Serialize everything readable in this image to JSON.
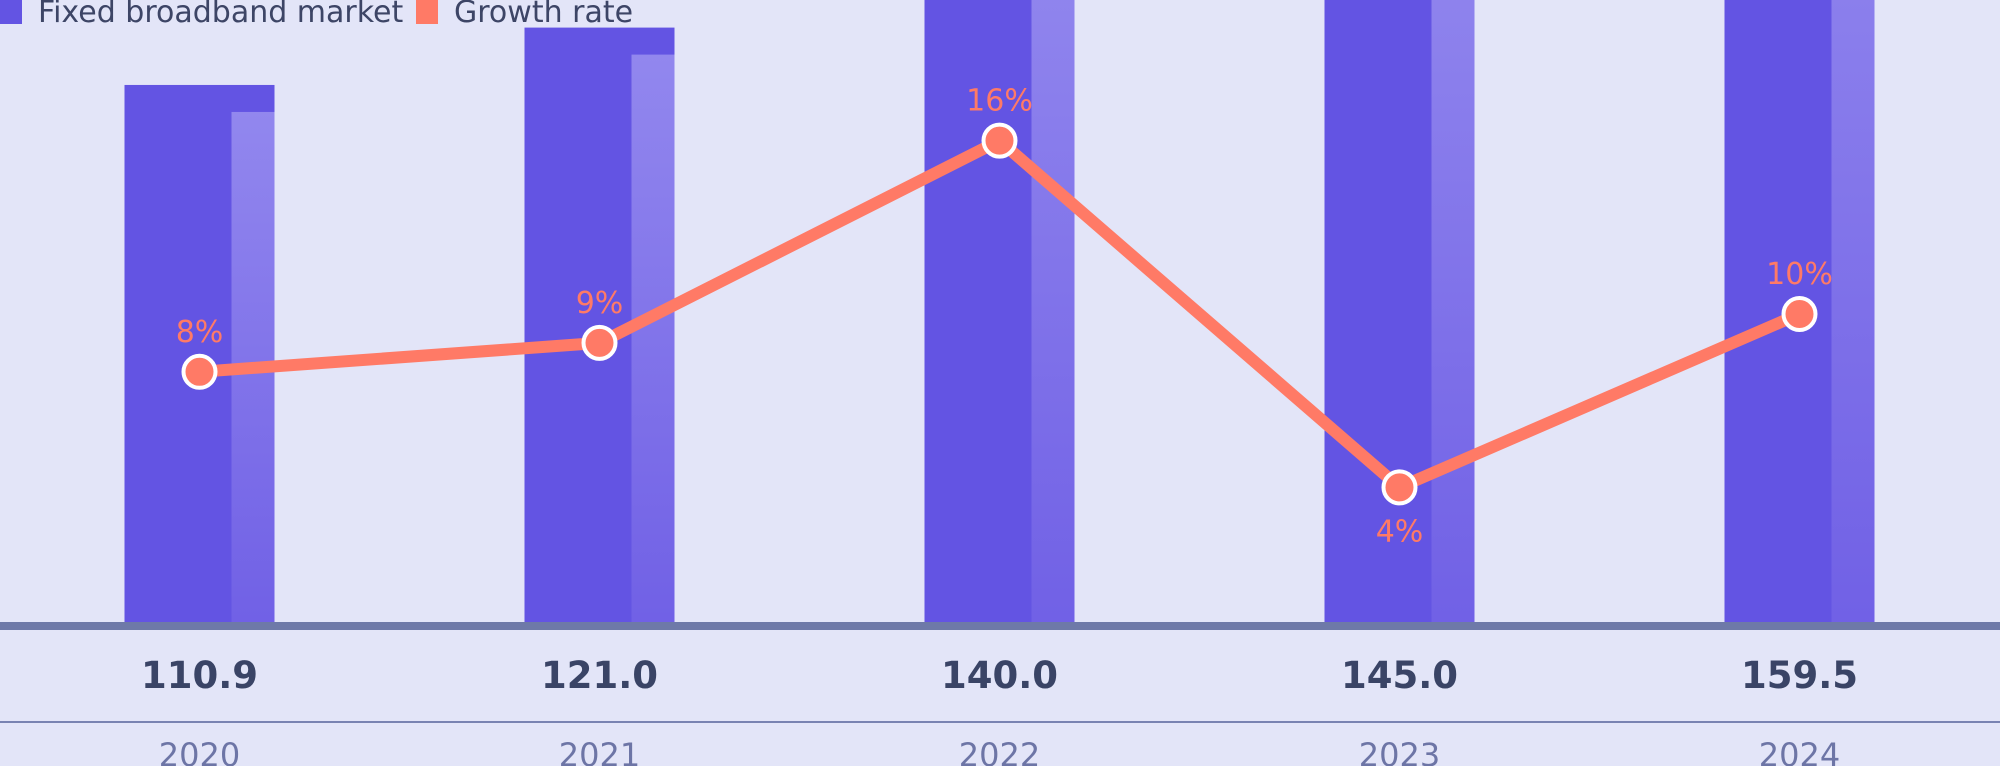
{
  "chart_data": {
    "type": "bar",
    "categories": [
      "2020",
      "2021",
      "2022",
      "2023",
      "2024"
    ],
    "series": [
      {
        "name": "Fixed broadband market",
        "type": "bar",
        "values": [
          110.9,
          121.0,
          140.0,
          145.0,
          159.5
        ],
        "value_labels": [
          "110.9",
          "121.0",
          "140.0",
          "145.0",
          "159.5"
        ],
        "color": "#6354e3"
      },
      {
        "name": "Growth rate",
        "type": "line",
        "values": [
          8,
          9,
          16,
          4,
          10
        ],
        "value_labels": [
          "8%",
          "9%",
          "16%",
          "4%",
          "10%"
        ],
        "color": "#ff7a66"
      }
    ],
    "legend_position": "top-left",
    "grid": false,
    "colors": {
      "background": "#e3e5f8",
      "bar_highlight": "#9a90f0",
      "baseline": "#6e79a8",
      "value_text": "#3a4466",
      "year_text": "#6d75a6"
    }
  }
}
